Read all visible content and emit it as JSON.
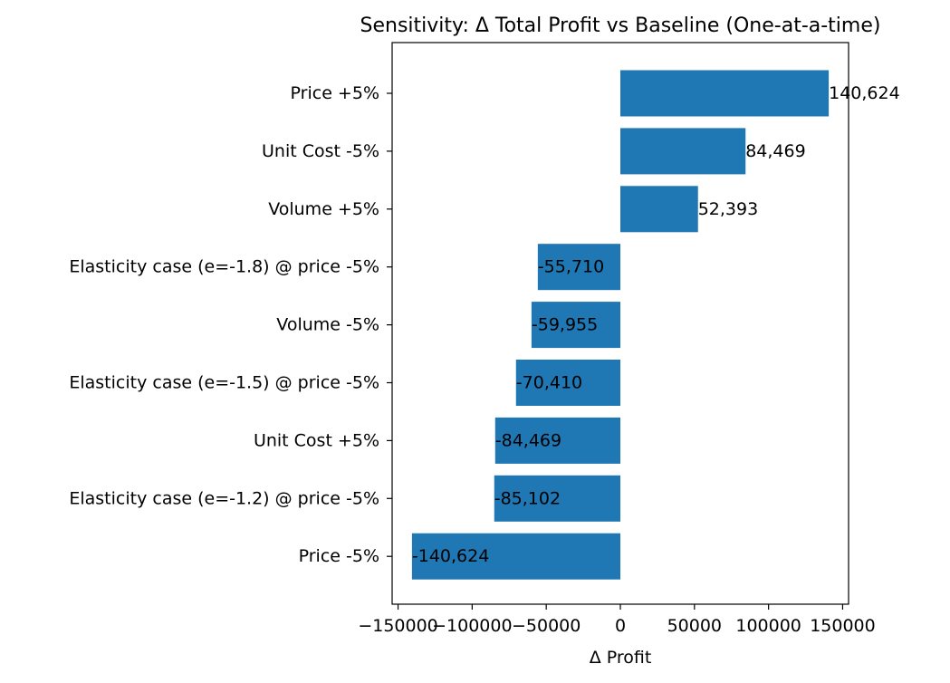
{
  "chart_data": {
    "type": "bar",
    "orientation": "horizontal",
    "title": "Sensitivity: Δ Total Profit vs Baseline (One-at-a-time)",
    "xlabel": "Δ Profit",
    "ylabel": "",
    "xlim": [
      -154000,
      154000
    ],
    "xticks": [
      {
        "value": -150000,
        "label": "−150000"
      },
      {
        "value": -100000,
        "label": "−100000"
      },
      {
        "value": -50000,
        "label": "−50000"
      },
      {
        "value": 0,
        "label": "0"
      },
      {
        "value": 50000,
        "label": "50000"
      },
      {
        "value": 100000,
        "label": "100000"
      },
      {
        "value": 150000,
        "label": "150000"
      }
    ],
    "bar_color": "#1f77b4",
    "grid": false,
    "legend": "none",
    "categories": [
      "Price +5%",
      "Unit Cost -5%",
      "Volume +5%",
      "Elasticity case (e=-1.8) @ price -5%",
      "Volume -5%",
      "Elasticity case (e=-1.5) @ price -5%",
      "Unit Cost +5%",
      "Elasticity case (e=-1.2) @ price -5%",
      "Price -5%"
    ],
    "values": [
      140624,
      84469,
      52393,
      -55710,
      -59955,
      -70410,
      -84469,
      -85102,
      -140624
    ],
    "value_labels": [
      "140,624",
      "84,469",
      "52,393",
      "-55,710",
      "-59,955",
      "-70,410",
      "-84,469",
      "-85,102",
      "-140,624"
    ]
  }
}
